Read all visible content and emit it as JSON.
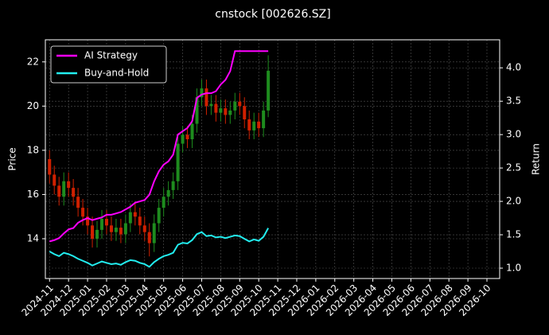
{
  "chart_data": {
    "type": "candlestick",
    "title": "cnstock [002626.SZ]",
    "ylabel": "Price",
    "y2label": "Return",
    "x": [
      0,
      0.25,
      0.5,
      0.75,
      1,
      1.25,
      1.5,
      1.75,
      2,
      2.25,
      2.5,
      2.75,
      3,
      3.25,
      3.5,
      3.75,
      4,
      4.25,
      4.5,
      4.75,
      5,
      5.25,
      5.5,
      5.75,
      6,
      6.25,
      6.5,
      6.75,
      7,
      7.25,
      7.5,
      7.75,
      8,
      8.25,
      8.5,
      8.75,
      9,
      9.25,
      9.5,
      9.75,
      10,
      10.25,
      10.5,
      10.75,
      11,
      11.25,
      11.5
    ],
    "open": [
      17.6,
      16.9,
      16.4,
      15.9,
      16.6,
      16.3,
      15.9,
      15.4,
      15.0,
      14.6,
      14.0,
      14.4,
      14.9,
      14.6,
      14.3,
      14.5,
      14.2,
      14.7,
      15.2,
      15.0,
      14.6,
      14.3,
      13.8,
      14.7,
      15.4,
      15.9,
      16.2,
      16.6,
      18.3,
      18.7,
      18.5,
      19.2,
      20.4,
      20.8,
      20.0,
      20.1,
      19.7,
      19.9,
      19.6,
      19.8,
      20.2,
      20.0,
      19.4,
      18.9,
      19.3,
      19.0,
      19.8
    ],
    "high": [
      18.0,
      17.3,
      16.8,
      17.0,
      17.0,
      16.7,
      16.3,
      15.8,
      15.4,
      15.0,
      14.8,
      15.3,
      15.3,
      15.0,
      14.9,
      14.9,
      15.1,
      15.6,
      15.6,
      15.4,
      15.0,
      14.7,
      15.1,
      15.8,
      16.3,
      16.6,
      17.0,
      18.7,
      19.1,
      19.1,
      19.6,
      20.8,
      21.2,
      21.2,
      20.5,
      20.5,
      20.3,
      20.3,
      20.2,
      20.6,
      20.6,
      20.4,
      19.8,
      19.7,
      19.7,
      20.2,
      22.3
    ],
    "low": [
      16.5,
      16.0,
      15.5,
      15.5,
      15.9,
      15.5,
      15.0,
      14.6,
      14.2,
      13.6,
      13.6,
      14.0,
      14.2,
      13.9,
      13.9,
      13.8,
      13.8,
      14.3,
      14.6,
      14.2,
      13.9,
      13.2,
      13.4,
      14.3,
      15.0,
      15.5,
      15.8,
      16.2,
      17.9,
      18.1,
      18.1,
      18.8,
      20.0,
      19.6,
      19.6,
      19.3,
      19.3,
      19.2,
      19.2,
      19.4,
      19.6,
      19.0,
      18.5,
      18.5,
      18.6,
      18.6,
      19.5
    ],
    "close": [
      16.9,
      16.4,
      15.9,
      16.6,
      16.3,
      15.9,
      15.4,
      15.0,
      14.6,
      14.0,
      14.4,
      14.9,
      14.6,
      14.3,
      14.5,
      14.2,
      14.7,
      15.2,
      15.0,
      14.6,
      14.3,
      13.8,
      14.7,
      15.4,
      15.9,
      16.2,
      16.6,
      18.3,
      18.7,
      18.5,
      19.2,
      20.4,
      20.8,
      20.0,
      20.1,
      19.7,
      19.9,
      19.6,
      19.8,
      20.2,
      20.0,
      19.4,
      18.9,
      19.3,
      19.0,
      19.8,
      21.6
    ],
    "up_color": "#1e8c1e",
    "down_color": "#d02000",
    "series": [
      {
        "name": "AI Strategy",
        "color": "#ff00ff",
        "axis": "y2",
        "values": [
          1.4,
          1.42,
          1.45,
          1.52,
          1.58,
          1.6,
          1.68,
          1.72,
          1.75,
          1.72,
          1.74,
          1.76,
          1.8,
          1.8,
          1.82,
          1.84,
          1.88,
          1.92,
          1.98,
          2.0,
          2.02,
          2.1,
          2.3,
          2.45,
          2.55,
          2.6,
          2.7,
          3.0,
          3.05,
          3.1,
          3.2,
          3.55,
          3.6,
          3.62,
          3.62,
          3.65,
          3.75,
          3.82,
          3.95,
          4.25,
          4.25,
          4.25,
          4.25,
          4.25,
          4.25,
          4.25,
          4.25
        ]
      },
      {
        "name": "Buy-and-Hold",
        "color": "#22eef0",
        "axis": "y2",
        "values": [
          1.25,
          1.21,
          1.18,
          1.23,
          1.21,
          1.18,
          1.14,
          1.11,
          1.08,
          1.04,
          1.07,
          1.1,
          1.08,
          1.06,
          1.07,
          1.05,
          1.09,
          1.12,
          1.11,
          1.08,
          1.06,
          1.02,
          1.09,
          1.14,
          1.18,
          1.2,
          1.23,
          1.35,
          1.38,
          1.37,
          1.42,
          1.51,
          1.54,
          1.48,
          1.49,
          1.46,
          1.47,
          1.45,
          1.47,
          1.49,
          1.48,
          1.44,
          1.4,
          1.43,
          1.41,
          1.47,
          1.6
        ]
      }
    ],
    "xlim": [
      -0.22,
      23.67
    ],
    "xticks": [
      {
        "value": 0,
        "label": "2024-11"
      },
      {
        "value": 1,
        "label": "2024-12"
      },
      {
        "value": 2,
        "label": "2025-01"
      },
      {
        "value": 3,
        "label": "2025-02"
      },
      {
        "value": 4,
        "label": "2025-03"
      },
      {
        "value": 5,
        "label": "2025-04"
      },
      {
        "value": 6,
        "label": "2025-05"
      },
      {
        "value": 7,
        "label": "2025-06"
      },
      {
        "value": 8,
        "label": "2025-07"
      },
      {
        "value": 9,
        "label": "2025-08"
      },
      {
        "value": 10,
        "label": "2025-09"
      },
      {
        "value": 11,
        "label": "2025-10"
      },
      {
        "value": 12,
        "label": "2025-11"
      },
      {
        "value": 13,
        "label": "2025-12"
      },
      {
        "value": 14,
        "label": "2026-01"
      },
      {
        "value": 15,
        "label": "2026-02"
      },
      {
        "value": 16,
        "label": "2026-03"
      },
      {
        "value": 17,
        "label": "2026-04"
      },
      {
        "value": 18,
        "label": "2026-05"
      },
      {
        "value": 19,
        "label": "2026-06"
      },
      {
        "value": 20,
        "label": "2026-07"
      },
      {
        "value": 21,
        "label": "2026-08"
      },
      {
        "value": 22,
        "label": "2026-09"
      },
      {
        "value": 23,
        "label": "2026-10"
      }
    ],
    "ylim": [
      12.2,
      23.0
    ],
    "yticks": [
      14,
      16,
      18,
      20,
      22
    ],
    "y2lim": [
      0.845,
      4.42
    ],
    "y2ticks": [
      {
        "value": 1,
        "label": "1.0"
      },
      1.5,
      {
        "value": 2,
        "label": "2.0"
      },
      2.5,
      {
        "value": 3,
        "label": "3.0"
      },
      3.5,
      {
        "value": 4,
        "label": "4.0"
      }
    ],
    "grid": true,
    "legend": "upper left"
  }
}
